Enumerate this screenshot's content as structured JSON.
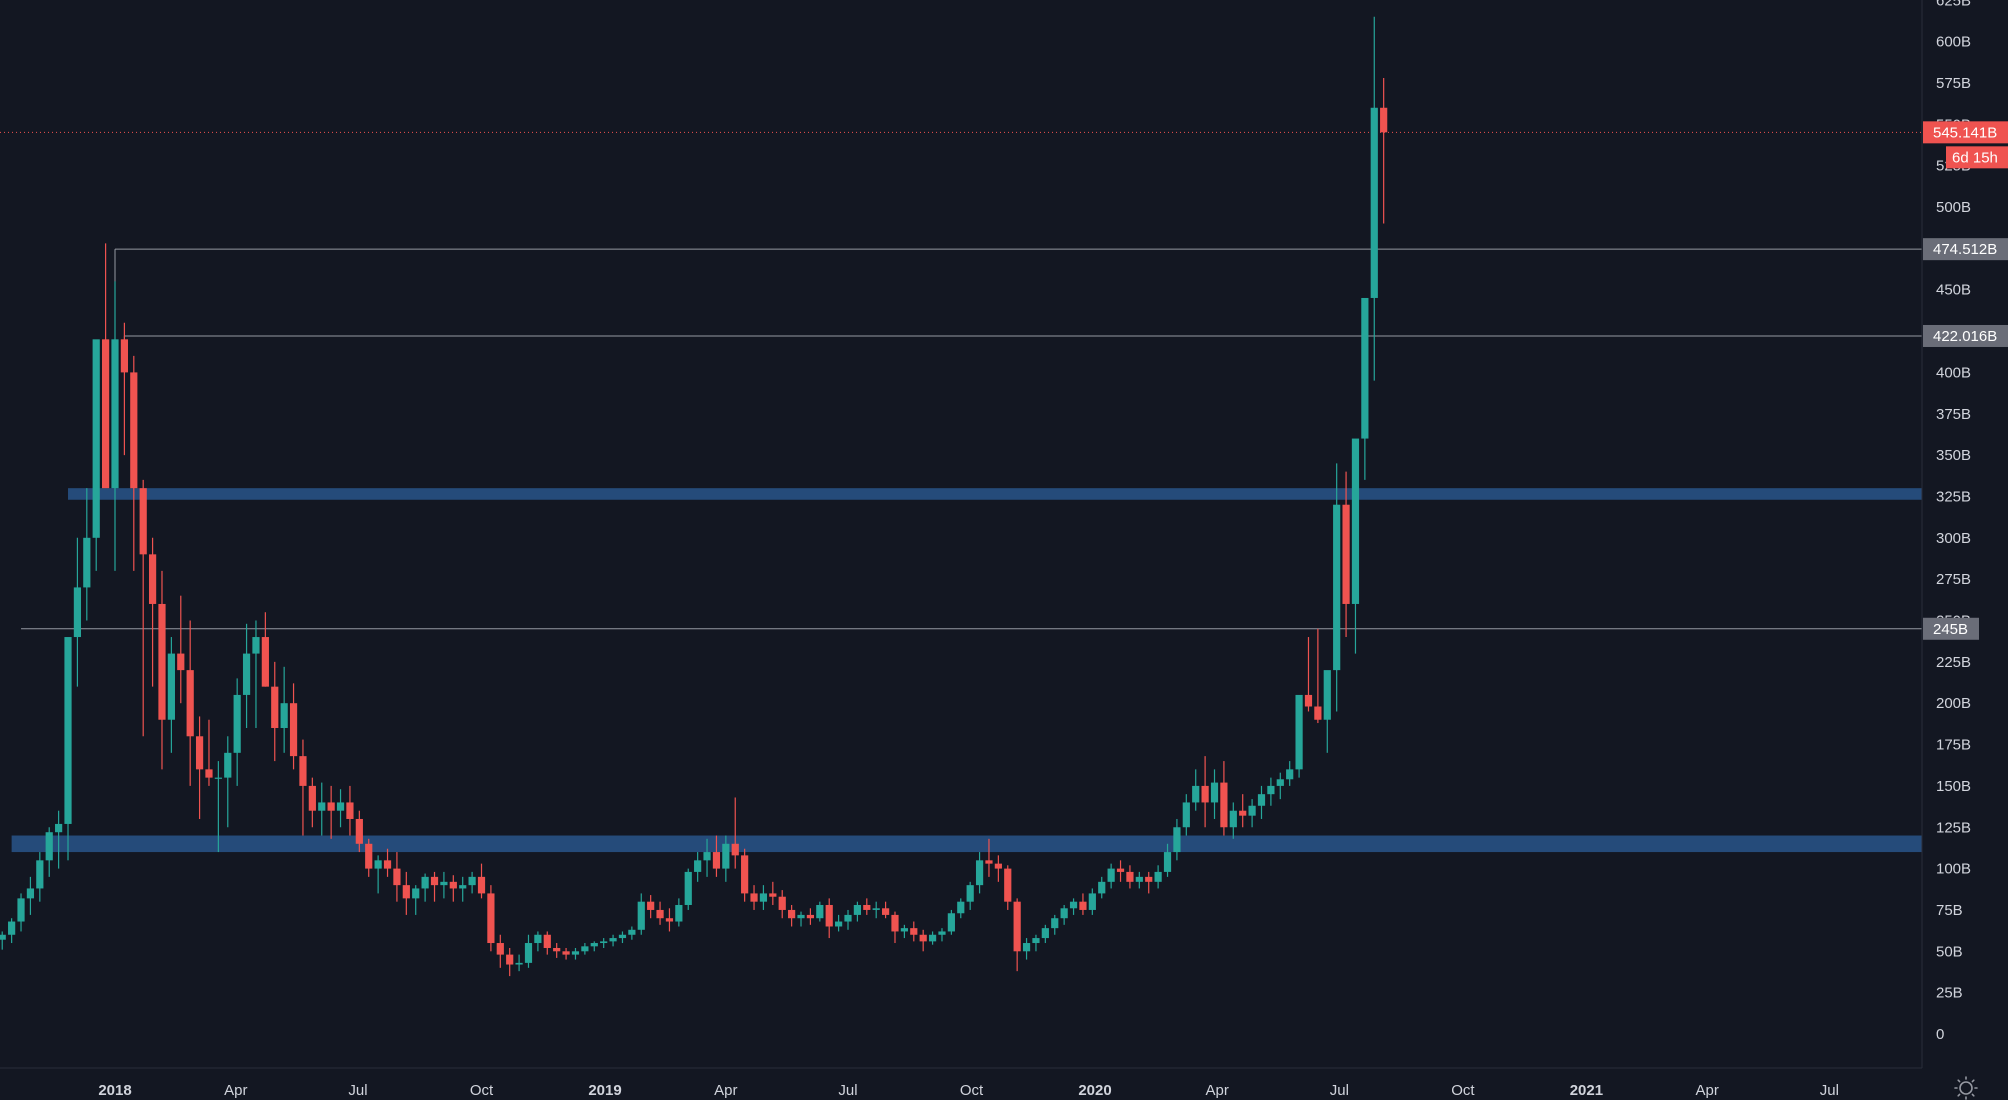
{
  "chart_data": {
    "type": "candlestick",
    "y_unit": "B",
    "ylim": [
      -20,
      625
    ],
    "y_ticks": [
      "0",
      "25B",
      "50B",
      "75B",
      "100B",
      "125B",
      "150B",
      "175B",
      "200B",
      "225B",
      "250B",
      "275B",
      "300B",
      "325B",
      "350B",
      "375B",
      "400B",
      "425B",
      "450B",
      "475B",
      "500B",
      "525B",
      "550B",
      "575B",
      "600B",
      "625B"
    ],
    "x_ticks": [
      {
        "label": "2018",
        "date": "2018-01-01",
        "bold": true
      },
      {
        "label": "Apr",
        "date": "2018-04-01",
        "bold": false
      },
      {
        "label": "Jul",
        "date": "2018-07-01",
        "bold": false
      },
      {
        "label": "Oct",
        "date": "2018-10-01",
        "bold": false
      },
      {
        "label": "2019",
        "date": "2019-01-01",
        "bold": true
      },
      {
        "label": "Apr",
        "date": "2019-04-01",
        "bold": false
      },
      {
        "label": "Jul",
        "date": "2019-07-01",
        "bold": false
      },
      {
        "label": "Oct",
        "date": "2019-10-01",
        "bold": false
      },
      {
        "label": "2020",
        "date": "2020-01-01",
        "bold": true
      },
      {
        "label": "Apr",
        "date": "2020-04-01",
        "bold": false
      },
      {
        "label": "Jul",
        "date": "2020-07-01",
        "bold": false
      },
      {
        "label": "Oct",
        "date": "2020-10-01",
        "bold": false
      },
      {
        "label": "2021",
        "date": "2021-01-01",
        "bold": true
      },
      {
        "label": "Apr",
        "date": "2021-04-01",
        "bold": false
      },
      {
        "label": "Jul",
        "date": "2021-07-01",
        "bold": false
      }
    ],
    "horizontal_levels": [
      {
        "value": 474.512,
        "label": "474.512B",
        "start": "2018-01-01"
      },
      {
        "value": 422.016,
        "label": "422.016B",
        "start": "2018-01-08"
      },
      {
        "value": 245,
        "label": "245B",
        "start": "2017-10-23"
      }
    ],
    "zones": [
      {
        "low": 323,
        "high": 330,
        "start": "2017-11-27"
      },
      {
        "low": 110,
        "high": 120,
        "start": "2017-10-16"
      }
    ],
    "last_price": {
      "value": 545.141,
      "label": "545.141B",
      "countdown": "6d 15h"
    },
    "colors": {
      "up": "#26a69a",
      "down": "#ef5350",
      "background": "#131722",
      "zone": "#2a5a94",
      "level_line": "#9598a1",
      "level_badge": "#6a6d78",
      "last_price": "#ef5350"
    },
    "weekly_ohlc_start": "2017-09-04",
    "weekly_ohlc": [
      [
        63,
        70,
        57,
        68
      ],
      [
        68,
        72,
        58,
        60
      ],
      [
        60,
        66,
        53,
        64
      ],
      [
        64,
        70,
        55,
        66
      ],
      [
        66,
        68,
        54,
        57
      ],
      [
        57,
        62,
        51,
        60
      ],
      [
        60,
        70,
        55,
        68
      ],
      [
        68,
        85,
        62,
        82
      ],
      [
        82,
        95,
        72,
        88
      ],
      [
        88,
        110,
        80,
        105
      ],
      [
        105,
        125,
        95,
        122
      ],
      [
        122,
        135,
        100,
        127
      ],
      [
        127,
        145,
        105,
        240
      ],
      [
        240,
        300,
        210,
        270
      ],
      [
        270,
        330,
        250,
        300
      ],
      [
        300,
        352,
        280,
        420
      ],
      [
        420,
        478,
        380,
        330
      ],
      [
        330,
        455,
        280,
        420
      ],
      [
        420,
        430,
        350,
        400
      ],
      [
        400,
        410,
        280,
        330
      ],
      [
        330,
        335,
        180,
        290
      ],
      [
        290,
        300,
        210,
        260
      ],
      [
        260,
        280,
        160,
        190
      ],
      [
        190,
        240,
        170,
        230
      ],
      [
        230,
        265,
        200,
        220
      ],
      [
        220,
        250,
        150,
        180
      ],
      [
        180,
        192,
        130,
        160
      ],
      [
        160,
        190,
        150,
        155
      ],
      [
        155,
        165,
        110,
        155
      ],
      [
        155,
        180,
        125,
        170
      ],
      [
        170,
        215,
        150,
        205
      ],
      [
        205,
        248,
        185,
        230
      ],
      [
        230,
        250,
        185,
        240
      ],
      [
        240,
        255,
        210,
        210
      ],
      [
        210,
        225,
        165,
        185
      ],
      [
        185,
        222,
        170,
        200
      ],
      [
        200,
        212,
        160,
        168
      ],
      [
        168,
        178,
        120,
        150
      ],
      [
        150,
        155,
        125,
        135
      ],
      [
        135,
        152,
        120,
        140
      ],
      [
        140,
        150,
        118,
        135
      ],
      [
        135,
        148,
        125,
        140
      ],
      [
        140,
        150,
        120,
        130
      ],
      [
        130,
        135,
        110,
        115
      ],
      [
        115,
        118,
        95,
        100
      ],
      [
        100,
        108,
        85,
        105
      ],
      [
        105,
        112,
        95,
        100
      ],
      [
        100,
        110,
        80,
        90
      ],
      [
        90,
        98,
        72,
        82
      ],
      [
        82,
        90,
        72,
        88
      ],
      [
        88,
        97,
        80,
        95
      ],
      [
        95,
        98,
        80,
        90
      ],
      [
        90,
        98,
        82,
        92
      ],
      [
        92,
        96,
        80,
        88
      ],
      [
        88,
        95,
        80,
        90
      ],
      [
        90,
        98,
        85,
        95
      ],
      [
        95,
        103,
        82,
        85
      ],
      [
        85,
        90,
        50,
        55
      ],
      [
        55,
        60,
        40,
        48
      ],
      [
        48,
        52,
        35,
        42
      ],
      [
        42,
        48,
        38,
        43
      ],
      [
        43,
        60,
        40,
        55
      ],
      [
        55,
        62,
        50,
        60
      ],
      [
        60,
        62,
        48,
        52
      ],
      [
        52,
        55,
        46,
        50
      ],
      [
        50,
        52,
        45,
        48
      ],
      [
        48,
        52,
        45,
        50
      ],
      [
        50,
        55,
        48,
        53
      ],
      [
        53,
        56,
        50,
        55
      ],
      [
        55,
        58,
        52,
        56
      ],
      [
        56,
        60,
        53,
        58
      ],
      [
        58,
        62,
        55,
        60
      ],
      [
        60,
        65,
        57,
        63
      ],
      [
        63,
        85,
        60,
        80
      ],
      [
        80,
        84,
        70,
        75
      ],
      [
        75,
        80,
        66,
        70
      ],
      [
        70,
        76,
        62,
        68
      ],
      [
        68,
        82,
        65,
        78
      ],
      [
        78,
        100,
        75,
        98
      ],
      [
        98,
        110,
        92,
        105
      ],
      [
        105,
        118,
        95,
        110
      ],
      [
        110,
        120,
        95,
        100
      ],
      [
        100,
        120,
        92,
        115
      ],
      [
        115,
        143,
        100,
        108
      ],
      [
        108,
        112,
        80,
        85
      ],
      [
        85,
        90,
        75,
        80
      ],
      [
        80,
        90,
        75,
        85
      ],
      [
        85,
        92,
        78,
        83
      ],
      [
        83,
        87,
        70,
        75
      ],
      [
        75,
        78,
        65,
        70
      ],
      [
        70,
        74,
        65,
        72
      ],
      [
        72,
        76,
        66,
        70
      ],
      [
        70,
        80,
        68,
        78
      ],
      [
        78,
        82,
        58,
        65
      ],
      [
        65,
        72,
        62,
        68
      ],
      [
        68,
        75,
        63,
        72
      ],
      [
        72,
        80,
        68,
        78
      ],
      [
        78,
        82,
        72,
        75
      ],
      [
        75,
        80,
        70,
        76
      ],
      [
        76,
        80,
        70,
        72
      ],
      [
        72,
        74,
        55,
        62
      ],
      [
        62,
        66,
        58,
        64
      ],
      [
        64,
        68,
        56,
        60
      ],
      [
        60,
        63,
        50,
        56
      ],
      [
        56,
        62,
        54,
        60
      ],
      [
        60,
        64,
        56,
        62
      ],
      [
        62,
        75,
        60,
        73
      ],
      [
        73,
        82,
        70,
        80
      ],
      [
        80,
        92,
        75,
        90
      ],
      [
        90,
        110,
        85,
        105
      ],
      [
        105,
        118,
        95,
        103
      ],
      [
        103,
        108,
        92,
        100
      ],
      [
        100,
        102,
        75,
        80
      ],
      [
        80,
        82,
        38,
        50
      ],
      [
        50,
        58,
        45,
        55
      ],
      [
        55,
        60,
        50,
        58
      ],
      [
        58,
        66,
        55,
        64
      ],
      [
        64,
        72,
        60,
        70
      ],
      [
        70,
        78,
        66,
        76
      ],
      [
        76,
        82,
        72,
        80
      ],
      [
        80,
        85,
        72,
        75
      ],
      [
        75,
        88,
        72,
        85
      ],
      [
        85,
        95,
        82,
        92
      ],
      [
        92,
        103,
        88,
        100
      ],
      [
        100,
        105,
        92,
        98
      ],
      [
        98,
        102,
        88,
        92
      ],
      [
        92,
        98,
        88,
        95
      ],
      [
        95,
        98,
        85,
        92
      ],
      [
        92,
        102,
        88,
        98
      ],
      [
        98,
        115,
        95,
        110
      ],
      [
        110,
        130,
        105,
        125
      ],
      [
        125,
        145,
        120,
        140
      ],
      [
        140,
        160,
        135,
        150
      ],
      [
        150,
        168,
        125,
        140
      ],
      [
        140,
        160,
        130,
        152
      ],
      [
        152,
        165,
        120,
        125
      ],
      [
        125,
        140,
        118,
        135
      ],
      [
        135,
        145,
        125,
        132
      ],
      [
        132,
        142,
        125,
        138
      ],
      [
        138,
        150,
        130,
        145
      ],
      [
        145,
        155,
        138,
        150
      ],
      [
        150,
        158,
        142,
        154
      ],
      [
        154,
        165,
        150,
        160
      ],
      [
        160,
        200,
        155,
        205
      ],
      [
        205,
        240,
        195,
        198
      ],
      [
        198,
        245,
        188,
        190
      ],
      [
        190,
        210,
        170,
        220
      ],
      [
        220,
        345,
        195,
        320
      ],
      [
        320,
        340,
        240,
        260
      ],
      [
        260,
        355,
        230,
        360
      ],
      [
        360,
        420,
        335,
        445
      ],
      [
        445,
        615,
        395,
        560
      ],
      [
        560,
        578,
        490,
        545.141
      ]
    ]
  }
}
